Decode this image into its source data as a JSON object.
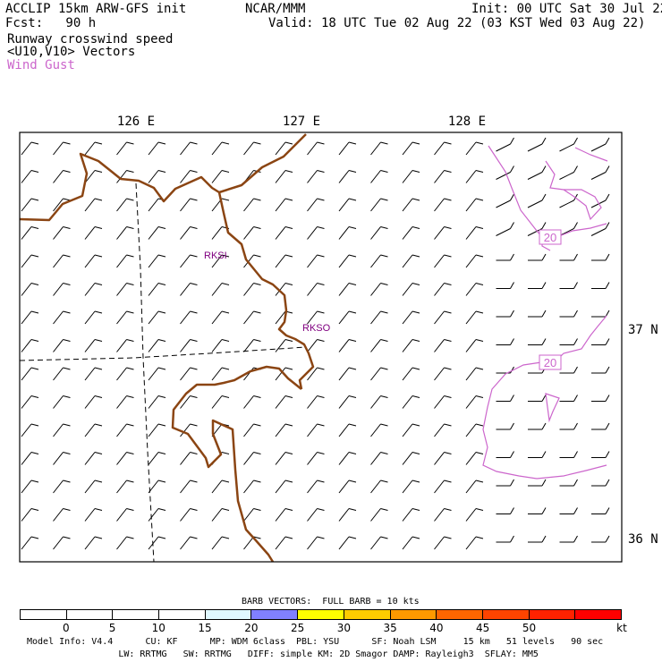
{
  "header": {
    "title_left": "ACCLIP 15km ARW-GFS init",
    "fcst": "Fcst:   90 h",
    "center": "NCAR/MMM",
    "init": "Init: 00 UTC Sat 30 Jul 22",
    "valid": "Valid: 18 UTC Tue 02 Aug 22 (03 KST Wed 03 Aug 22)",
    "line3": "Runway crosswind speed",
    "line4": "<U10,V10> Vectors",
    "line5": "Wind Gust"
  },
  "colors": {
    "coast": "#8b4513",
    "gust": "#cc66cc",
    "station": "#800080"
  },
  "map": {
    "lon_labels": [
      "126 E",
      "127 E",
      "128 E"
    ],
    "lat_labels": [
      "37 N",
      "36 N"
    ],
    "stations": [
      "RKSI",
      "RKSO"
    ],
    "contour_labels": [
      "20",
      "20"
    ]
  },
  "colorbar": {
    "title": "BARB VECTORS:  FULL BARB = 10 kts",
    "colors": [
      "#ffffff",
      "#ffffff",
      "#ffffff",
      "#ffffff",
      "#e0f8ff",
      "#8080ff",
      "#ffff00",
      "#ffcc00",
      "#ff9900",
      "#ff6600",
      "#ff4400",
      "#ff2200",
      "#ff0000"
    ],
    "labels": [
      "0",
      "5",
      "10",
      "15",
      "20",
      "25",
      "30",
      "35",
      "40",
      "45",
      "50"
    ],
    "unit": "kt"
  },
  "footer": {
    "line1": "Model Info: V4.4      CU: KF      MP: WDM 6class  PBL: YSU      SF: Noah LSM     15 km   51 levels   90 sec",
    "line2": "                 LW: RRTMG   SW: RRTMG   DIFF: simple KM: 2D Smagor DAMP: Rayleigh3  SFLAY: MM5"
  }
}
